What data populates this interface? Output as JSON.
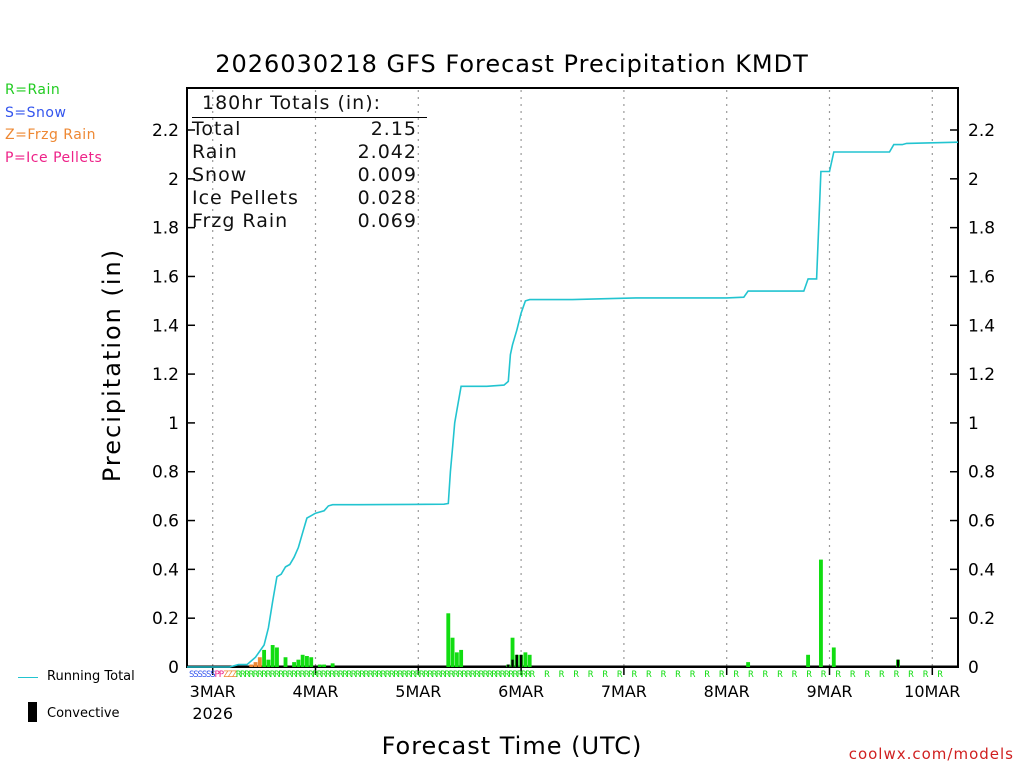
{
  "title": "2026030218 GFS Forecast Precipitation KMDT",
  "ptype_legend": [
    {
      "label": "R=Rain",
      "color": "#22cc22"
    },
    {
      "label": "S=Snow",
      "color": "#3355ee"
    },
    {
      "label": "Z=Frzg Rain",
      "color": "#ee8833"
    },
    {
      "label": "P=Ice Pellets",
      "color": "#ee2288"
    }
  ],
  "totals": {
    "header": "180hr Totals (in):",
    "rows": [
      {
        "label": "Total",
        "value": "2.15"
      },
      {
        "label": "Rain",
        "value": "2.042"
      },
      {
        "label": "Snow",
        "value": "0.009"
      },
      {
        "label": "Ice Pellets",
        "value": "0.028"
      },
      {
        "label": "Frzg Rain",
        "value": "0.069"
      }
    ]
  },
  "bottom_legend": {
    "running_total": "Running Total",
    "convective": "Convective"
  },
  "credit": "coolwx.com/models",
  "colors": {
    "running_total": "#22c4d0",
    "rain_bar": "#11dd11",
    "convective": "#000000"
  },
  "chart_data": {
    "type": "bar+line",
    "title": "2026030218 GFS Forecast Precipitation KMDT",
    "xlabel": "Forecast Time (UTC)",
    "ylabel": "Precipitation (in)",
    "ylim": [
      0,
      2.35
    ],
    "xlim_hours": [
      0,
      180
    ],
    "yticks": [
      0,
      0.2,
      0.4,
      0.6,
      0.8,
      1,
      1.2,
      1.4,
      1.6,
      1.8,
      2,
      2.2
    ],
    "ytick_labels": [
      "0",
      "0.2",
      "0.4",
      "0.6",
      "0.8",
      "1",
      "1.2",
      "1.4",
      "1.6",
      "1.8",
      "2",
      "2.2"
    ],
    "xticks": [
      {
        "hour": 6,
        "label": "3MAR",
        "sub": "2026"
      },
      {
        "hour": 30,
        "label": "4MAR"
      },
      {
        "hour": 54,
        "label": "5MAR"
      },
      {
        "hour": 78,
        "label": "6MAR"
      },
      {
        "hour": 102,
        "label": "7MAR"
      },
      {
        "hour": 126,
        "label": "8MAR"
      },
      {
        "hour": 150,
        "label": "9MAR"
      },
      {
        "hour": 174,
        "label": "10MAR"
      }
    ],
    "running_total": [
      [
        0,
        0
      ],
      [
        10,
        0
      ],
      [
        12,
        0.01
      ],
      [
        14,
        0.01
      ],
      [
        16,
        0.04
      ],
      [
        18,
        0.09
      ],
      [
        19,
        0.16
      ],
      [
        20,
        0.27
      ],
      [
        21,
        0.37
      ],
      [
        22,
        0.38
      ],
      [
        23,
        0.41
      ],
      [
        24,
        0.42
      ],
      [
        25,
        0.45
      ],
      [
        26,
        0.49
      ],
      [
        27,
        0.55
      ],
      [
        28,
        0.61
      ],
      [
        29,
        0.62
      ],
      [
        30,
        0.63
      ],
      [
        32,
        0.64
      ],
      [
        33,
        0.66
      ],
      [
        34,
        0.665
      ],
      [
        40,
        0.665
      ],
      [
        52,
        0.666
      ],
      [
        60,
        0.667
      ],
      [
        61,
        0.67
      ],
      [
        61.5,
        0.8
      ],
      [
        62,
        0.9
      ],
      [
        62.5,
        1.0
      ],
      [
        63,
        1.05
      ],
      [
        64,
        1.15
      ],
      [
        70,
        1.15
      ],
      [
        74,
        1.155
      ],
      [
        75,
        1.17
      ],
      [
        75.5,
        1.28
      ],
      [
        76,
        1.32
      ],
      [
        77,
        1.38
      ],
      [
        78,
        1.45
      ],
      [
        79,
        1.5
      ],
      [
        80,
        1.505
      ],
      [
        90,
        1.505
      ],
      [
        100,
        1.51
      ],
      [
        105,
        1.512
      ],
      [
        126,
        1.512
      ],
      [
        130,
        1.515
      ],
      [
        131,
        1.54
      ],
      [
        144,
        1.54
      ],
      [
        145,
        1.59
      ],
      [
        147,
        1.59
      ],
      [
        148,
        2.03
      ],
      [
        150,
        2.03
      ],
      [
        151,
        2.11
      ],
      [
        164,
        2.11
      ],
      [
        165,
        2.14
      ],
      [
        167,
        2.14
      ],
      [
        168,
        2.145
      ],
      [
        180,
        2.15
      ]
    ],
    "bars": [
      {
        "hour": 15,
        "value": 0.01,
        "ptype": "Z"
      },
      {
        "hour": 16,
        "value": 0.02,
        "ptype": "Z"
      },
      {
        "hour": 17,
        "value": 0.04,
        "ptype": "Z"
      },
      {
        "hour": 18,
        "value": 0.07,
        "ptype": "R"
      },
      {
        "hour": 19,
        "value": 0.03,
        "ptype": "R"
      },
      {
        "hour": 20,
        "value": 0.09,
        "ptype": "R"
      },
      {
        "hour": 21,
        "value": 0.08,
        "ptype": "R"
      },
      {
        "hour": 23,
        "value": 0.04,
        "ptype": "R"
      },
      {
        "hour": 25,
        "value": 0.02,
        "ptype": "R"
      },
      {
        "hour": 26,
        "value": 0.03,
        "ptype": "R"
      },
      {
        "hour": 27,
        "value": 0.05,
        "ptype": "R"
      },
      {
        "hour": 28,
        "value": 0.045,
        "ptype": "R"
      },
      {
        "hour": 29,
        "value": 0.04,
        "ptype": "R"
      },
      {
        "hour": 31,
        "value": 0.01,
        "ptype": "R"
      },
      {
        "hour": 32,
        "value": 0.01,
        "ptype": "R"
      },
      {
        "hour": 34,
        "value": 0.015,
        "ptype": "R"
      },
      {
        "hour": 61,
        "value": 0.22,
        "ptype": "R"
      },
      {
        "hour": 62,
        "value": 0.12,
        "ptype": "R"
      },
      {
        "hour": 63,
        "value": 0.06,
        "ptype": "R"
      },
      {
        "hour": 64,
        "value": 0.07,
        "ptype": "R"
      },
      {
        "hour": 75,
        "value": 0.01,
        "ptype": "R",
        "conv": 0.01
      },
      {
        "hour": 76,
        "value": 0.12,
        "ptype": "R",
        "conv": 0.03
      },
      {
        "hour": 77,
        "value": 0.05,
        "ptype": "R",
        "conv": 0.05
      },
      {
        "hour": 78,
        "value": 0.05,
        "ptype": "R",
        "conv": 0.05
      },
      {
        "hour": 79,
        "value": 0.06,
        "ptype": "R"
      },
      {
        "hour": 80,
        "value": 0.05,
        "ptype": "R"
      },
      {
        "hour": 131,
        "value": 0.02,
        "ptype": "R"
      },
      {
        "hour": 145,
        "value": 0.05,
        "ptype": "R"
      },
      {
        "hour": 148,
        "value": 0.44,
        "ptype": "R"
      },
      {
        "hour": 151,
        "value": 0.08,
        "ptype": "R"
      },
      {
        "hour": 166,
        "value": 0.03,
        "ptype": "R",
        "conv": 0.03
      }
    ],
    "ptype_row": "SSSSSSPPZZZRRRRRRRRRRRRRRRRRRRRRRRRRRRRRRRRRRRRRRRRRRRRRRRRRRRRRRRRRRRRRRRRRRRRR",
    "ptype_sparse": "R R R R R R R R R R R R R R R R R R R R R R R R R R R R R"
  }
}
